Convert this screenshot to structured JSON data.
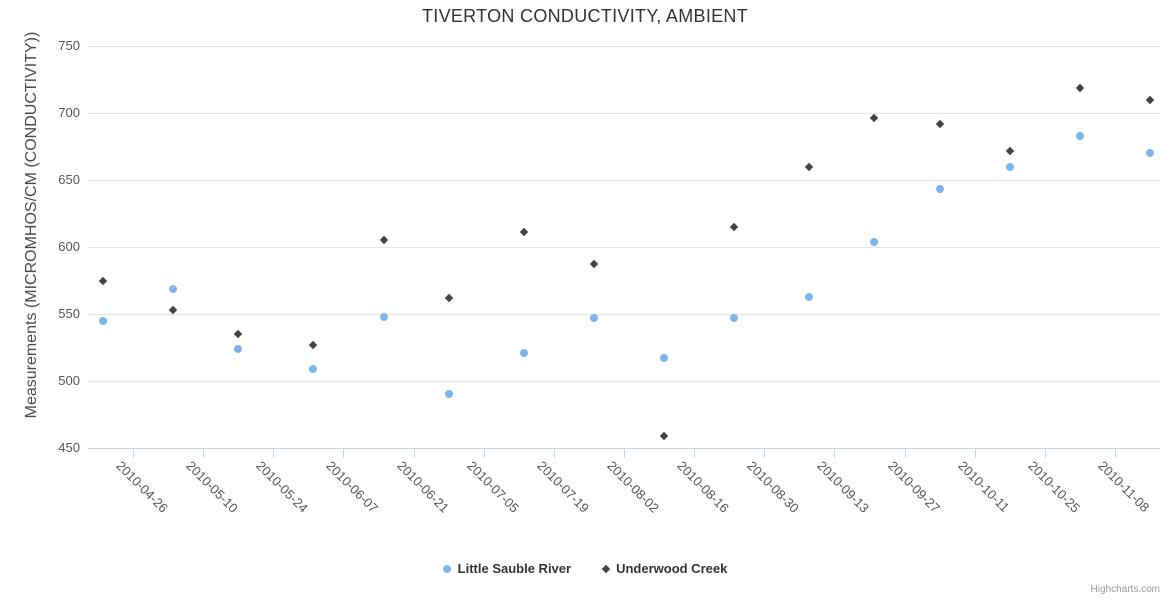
{
  "title": "TIVERTON CONDUCTIVITY, AMBIENT",
  "credits_label": "Highcharts.com",
  "colors": {
    "series_blue": "#7cb5ec",
    "series_dark": "#434348",
    "grid": "#e6e6e6",
    "axis_line": "#ccd6eb",
    "title_text": "#333333",
    "axis_label_text": "#555555",
    "credits_text": "#999999"
  },
  "chart_data": {
    "type": "scatter",
    "title": "TIVERTON CONDUCTIVITY, AMBIENT",
    "xlabel": "",
    "ylabel": "Measurements (MICROMHOS/CM (CONDUCTIVITY))",
    "ylim": [
      450,
      750
    ],
    "y_ticks": [
      450,
      500,
      550,
      600,
      650,
      700,
      750
    ],
    "x_range": [
      "2010-04-17",
      "2010-11-17"
    ],
    "x_tick_labels": [
      "2010-04-26",
      "2010-05-10",
      "2010-05-24",
      "2010-06-07",
      "2010-06-21",
      "2010-07-05",
      "2010-07-19",
      "2010-08-02",
      "2010-08-16",
      "2010-08-30",
      "2010-09-13",
      "2010-09-27",
      "2010-10-11",
      "2010-10-25",
      "2010-11-08"
    ],
    "grid": "horizontal-only",
    "legend_position": "bottom-center",
    "series": [
      {
        "name": "Little Sauble River",
        "marker": "circle",
        "color": "#7cb5ec",
        "points": [
          {
            "x": "2010-04-20",
            "y": 545
          },
          {
            "x": "2010-05-04",
            "y": 569
          },
          {
            "x": "2010-05-17",
            "y": 524
          },
          {
            "x": "2010-06-01",
            "y": 509
          },
          {
            "x": "2010-06-15",
            "y": 548
          },
          {
            "x": "2010-06-28",
            "y": 490
          },
          {
            "x": "2010-07-13",
            "y": 521
          },
          {
            "x": "2010-07-27",
            "y": 547
          },
          {
            "x": "2010-08-10",
            "y": 517
          },
          {
            "x": "2010-08-24",
            "y": 547
          },
          {
            "x": "2010-09-08",
            "y": 563
          },
          {
            "x": "2010-09-21",
            "y": 604
          },
          {
            "x": "2010-10-04",
            "y": 643
          },
          {
            "x": "2010-10-18",
            "y": 660
          },
          {
            "x": "2010-11-01",
            "y": 683
          },
          {
            "x": "2010-11-15",
            "y": 670
          }
        ]
      },
      {
        "name": "Underwood Creek",
        "marker": "diamond",
        "color": "#434348",
        "points": [
          {
            "x": "2010-04-20",
            "y": 575
          },
          {
            "x": "2010-05-04",
            "y": 553
          },
          {
            "x": "2010-05-17",
            "y": 535
          },
          {
            "x": "2010-06-01",
            "y": 527
          },
          {
            "x": "2010-06-15",
            "y": 605
          },
          {
            "x": "2010-06-28",
            "y": 562
          },
          {
            "x": "2010-07-13",
            "y": 611
          },
          {
            "x": "2010-07-27",
            "y": 587
          },
          {
            "x": "2010-08-10",
            "y": 459
          },
          {
            "x": "2010-08-24",
            "y": 615
          },
          {
            "x": "2010-09-08",
            "y": 660
          },
          {
            "x": "2010-09-21",
            "y": 696
          },
          {
            "x": "2010-10-04",
            "y": 692
          },
          {
            "x": "2010-10-18",
            "y": 672
          },
          {
            "x": "2010-11-01",
            "y": 719
          },
          {
            "x": "2010-11-15",
            "y": 710
          }
        ]
      }
    ]
  }
}
